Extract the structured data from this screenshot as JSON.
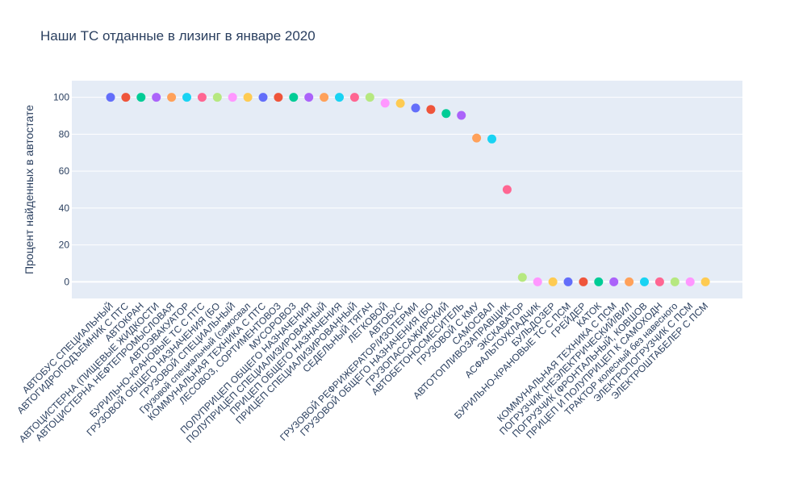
{
  "chart_data": {
    "type": "scatter",
    "title": "Наши ТС отданные в лизинг в январе 2020",
    "xlabel": "",
    "ylabel": "Процент найденных в автостате",
    "ylim": [
      -9,
      109
    ],
    "yticks": [
      0,
      20,
      40,
      60,
      80,
      100
    ],
    "grid": true,
    "legend": "none",
    "colors": [
      "#636efa",
      "#ef553b",
      "#00cc96",
      "#ab63fa",
      "#ffa15a",
      "#19d3f3",
      "#ff6692",
      "#b6e880",
      "#ff97ff",
      "#fecb52"
    ],
    "categories": [
      "АВТОБУС СПЕЦИАЛЬНЫЙ",
      "АВТОГИДРОПОДЪЕМНИК С ПТС",
      "АВТОКРАН",
      "АВТОЦИСТЕРНА (ПИЩЕВЫЕ ЖИДКОСТИ",
      "АВТОЦИСТЕРНА НЕФТЕПРОМЫСЛОВАЯ",
      "АВТОЭВАКУАТОР",
      "БУРИЛЬНО-КРАНОВЫЕ ТС С ПТС",
      "ГРУЗОВОЙ ОБЩЕГО НАЗНАЧЕНИЯ (БО",
      "ГРУЗОВОЙ СПЕЦИАЛЬНЫЙ",
      "Грузовой специальный (самосвал",
      "КОММУНАЛЬНАЯ ТЕХНИКА С ПТС",
      "ЛЕСОВОЗ, СОРТИМЕНТОВОЗ",
      "МУСОРОВОЗ",
      "ПОЛУПРИЦЕП ОБЩЕГО НАЗНАЧЕНИЯ",
      "ПОЛУПРИЦЕП СПЕЦИАЛИЗИРОВАННЫЙ",
      "ПРИЦЕП ОБЩЕГО НАЗНАЧЕНИЯ",
      "ПРИЦЕП СПЕЦИАЛИЗИРОВАННЫЙ",
      "СЕДЕЛЬНЫЙ ТЯГАЧ",
      "ЛЕГКОВОЙ",
      "АВТОБУС",
      "ГРУЗОВОЙ РЕФРИЖЕРАТОР/ИЗОТЕРМИ",
      "ГРУЗОВОЙ ОБЩЕГО НАЗНАЧЕНИЯ (БО",
      "ГРУЗОПАССАЖИРСКИЙ",
      "АВТОБЕТОНОСМЕСИТЕЛЬ",
      "ГРУЗОВОЙ С КМУ",
      "САМОСВАЛ",
      "АВТОТОПЛИВОЗАПРАВЩИК",
      "ЭКСКАВАТОР",
      "АСФАЛЬТОУКЛАДЧИК",
      "БУЛЬДОЗЕР",
      "БУРИЛЬНО-КРАНОВЫЕ ТС С ПСМ",
      "ГРЕЙДЕР",
      "КАТОК",
      "КОММУНАЛЬНАЯ ТЕХНИКА  С ПСМ",
      "ПОГРУЗЧИК (НЕЭЛЕКТРИЧЕСКИЙ/ВИЛ",
      "ПОГРУЗЧИК (ФРОНТАЛЬНЫЙ, КОВШОВ",
      "ПРИЦЕП И ПОЛУПРИЦЕП К САМОХОДН",
      "ТРАКТОР колесный без навесного",
      "ЭЛЕКТРОПОГРУЗЧИК С ПСМ",
      "ЭЛЕКТРОШТАБЕЛЕР С ПСМ"
    ],
    "values": [
      100,
      100,
      100,
      100,
      100,
      100,
      100,
      100,
      100,
      100,
      100,
      100,
      100,
      100,
      100,
      100,
      100,
      100,
      96.8,
      96.7,
      94.2,
      93.4,
      91.2,
      90.2,
      77.9,
      77.4,
      50.0,
      2.4,
      0,
      0,
      0,
      0,
      0,
      0,
      0,
      0,
      0,
      0,
      0,
      0
    ]
  }
}
